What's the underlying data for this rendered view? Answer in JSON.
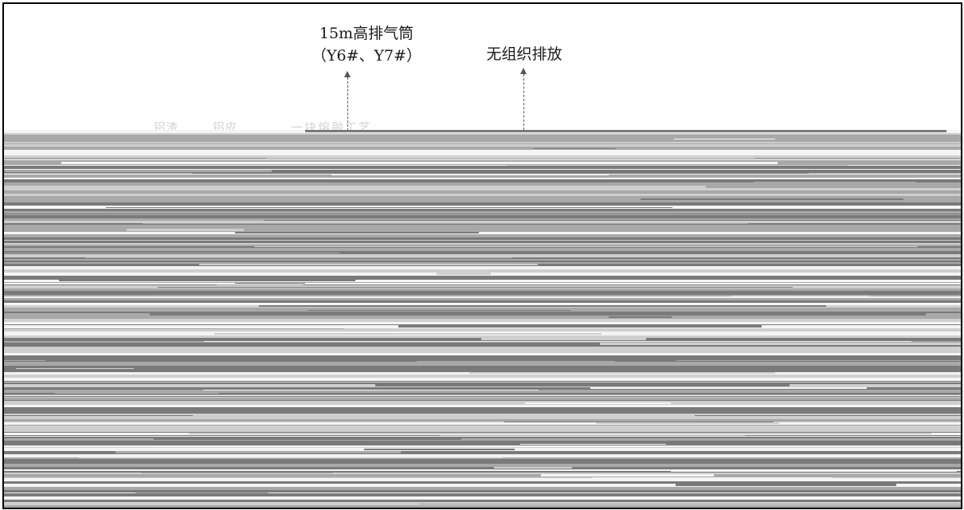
{
  "diagram": {
    "stack_label_line1": "15m高排气筒",
    "stack_label_line2": "（Y6#、Y7#）",
    "fugitive_label": "无组织排放",
    "faint_labels": [
      "铝渣",
      "铝皮",
      "一块熔融工艺"
    ]
  },
  "colors": {
    "band_dark": "#7a7a7a",
    "band_mid": "#a8a8a8",
    "band_light": "#cfcfcf",
    "band_white": "#f4f4f4",
    "arrow": "#555555"
  }
}
